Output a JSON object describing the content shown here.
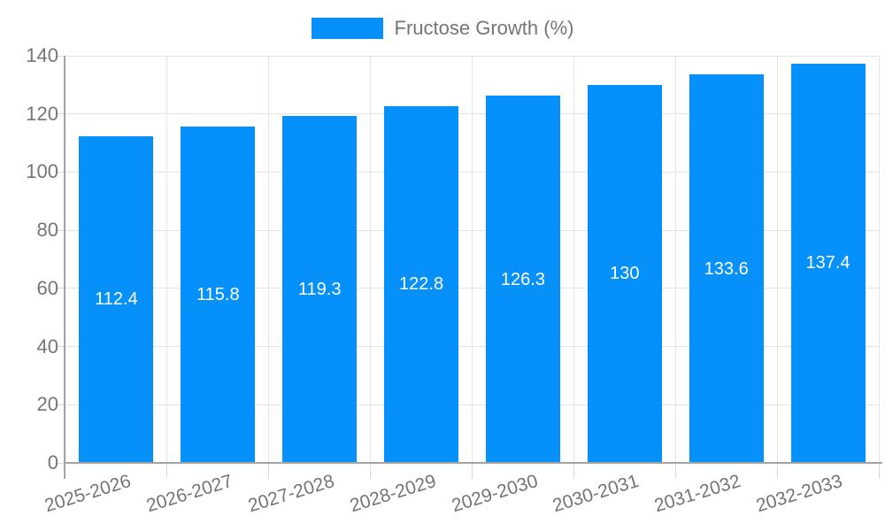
{
  "chart_data": {
    "type": "bar",
    "title": "",
    "legend": {
      "label": "Fructose Growth (%)",
      "position": "top"
    },
    "categories": [
      "2025-2026",
      "2026-2027",
      "2027-2028",
      "2028-2029",
      "2029-2030",
      "2030-2031",
      "2031-2032",
      "2032-2033"
    ],
    "series": [
      {
        "name": "Fructose Growth (%)",
        "values": [
          112.4,
          115.8,
          119.3,
          122.8,
          126.3,
          130,
          133.6,
          137.4
        ]
      }
    ],
    "value_labels": [
      "112.4",
      "115.8",
      "119.3",
      "122.8",
      "126.3",
      "130",
      "133.6",
      "137.4"
    ],
    "xlabel": "",
    "ylabel": "",
    "ylim": [
      0,
      140
    ],
    "yticks": [
      0,
      20,
      40,
      60,
      80,
      100,
      120,
      140
    ],
    "grid": true,
    "legend_position": "top-center",
    "colors": {
      "bar": "#0590fa",
      "grid": "#e4e4e4",
      "axis": "#a3a3a3",
      "tick": "#d9d9d9",
      "text": "#757575",
      "value_label": "#ffffff",
      "background": "#ffffff"
    }
  }
}
